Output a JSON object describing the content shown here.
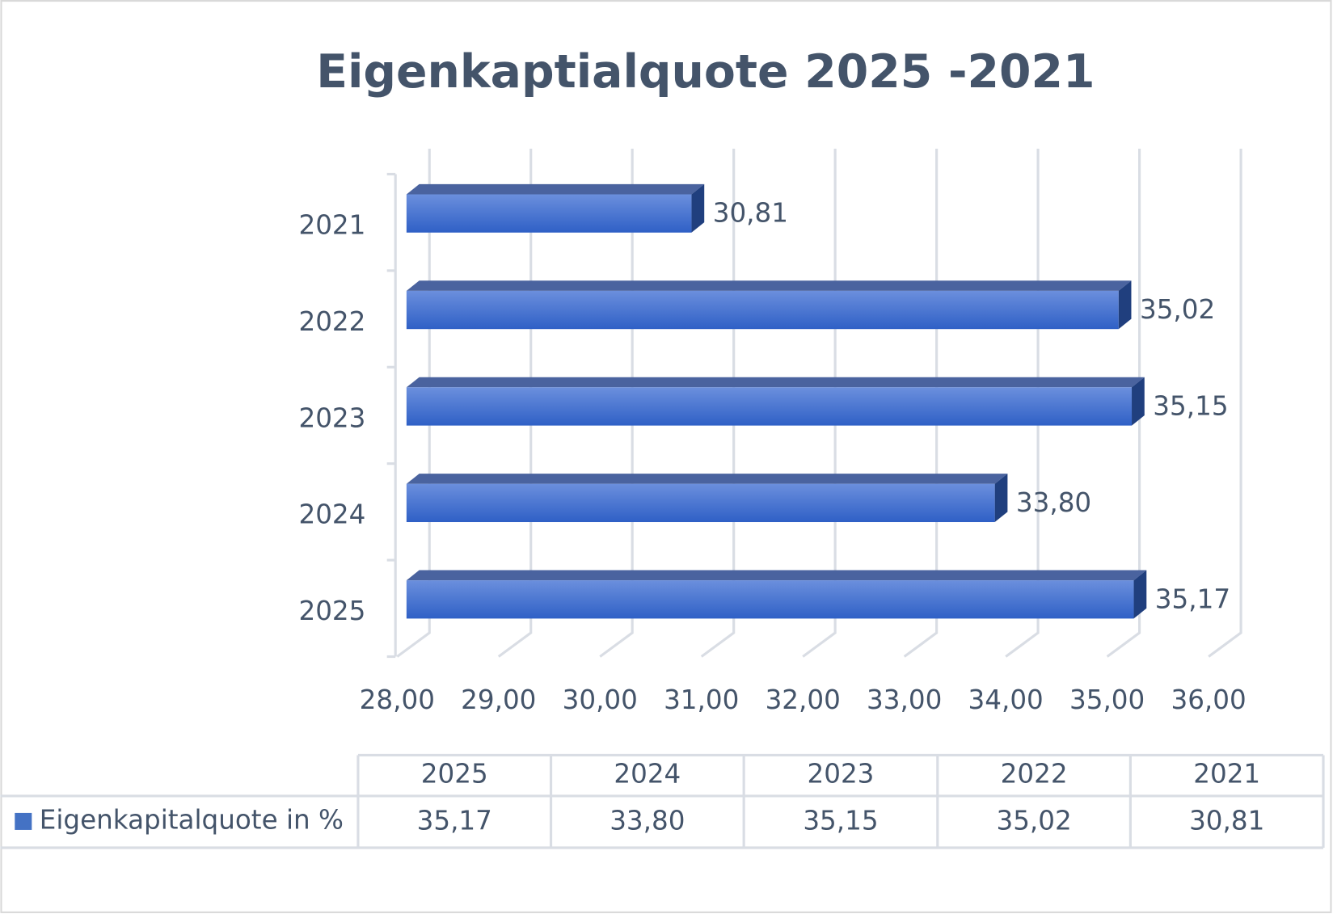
{
  "chart_data": {
    "type": "bar3d_horizontal",
    "title": "Eigenkaptialquote 2025 -2021",
    "categories": [
      "2025",
      "2024",
      "2023",
      "2022",
      "2021"
    ],
    "series": [
      {
        "name": "Eigenkapitalquote in %",
        "color": "#4472c4",
        "values": [
          35.17,
          33.8,
          35.15,
          35.02,
          30.81
        ],
        "value_labels": [
          "35,17",
          "33,80",
          "35,15",
          "35,02",
          "30,81"
        ]
      }
    ],
    "xlim": [
      28,
      36
    ],
    "xticks": [
      {
        "value": 28,
        "label": "28,00"
      },
      {
        "value": 29,
        "label": "29,00"
      },
      {
        "value": 30,
        "label": "30,00"
      },
      {
        "value": 31,
        "label": "31,00"
      },
      {
        "value": 32,
        "label": "32,00"
      },
      {
        "value": 33,
        "label": "33,00"
      },
      {
        "value": 34,
        "label": "34,00"
      },
      {
        "value": 35,
        "label": "35,00"
      },
      {
        "value": 36,
        "label": "36,00"
      }
    ],
    "grid": true,
    "data_table": true
  }
}
